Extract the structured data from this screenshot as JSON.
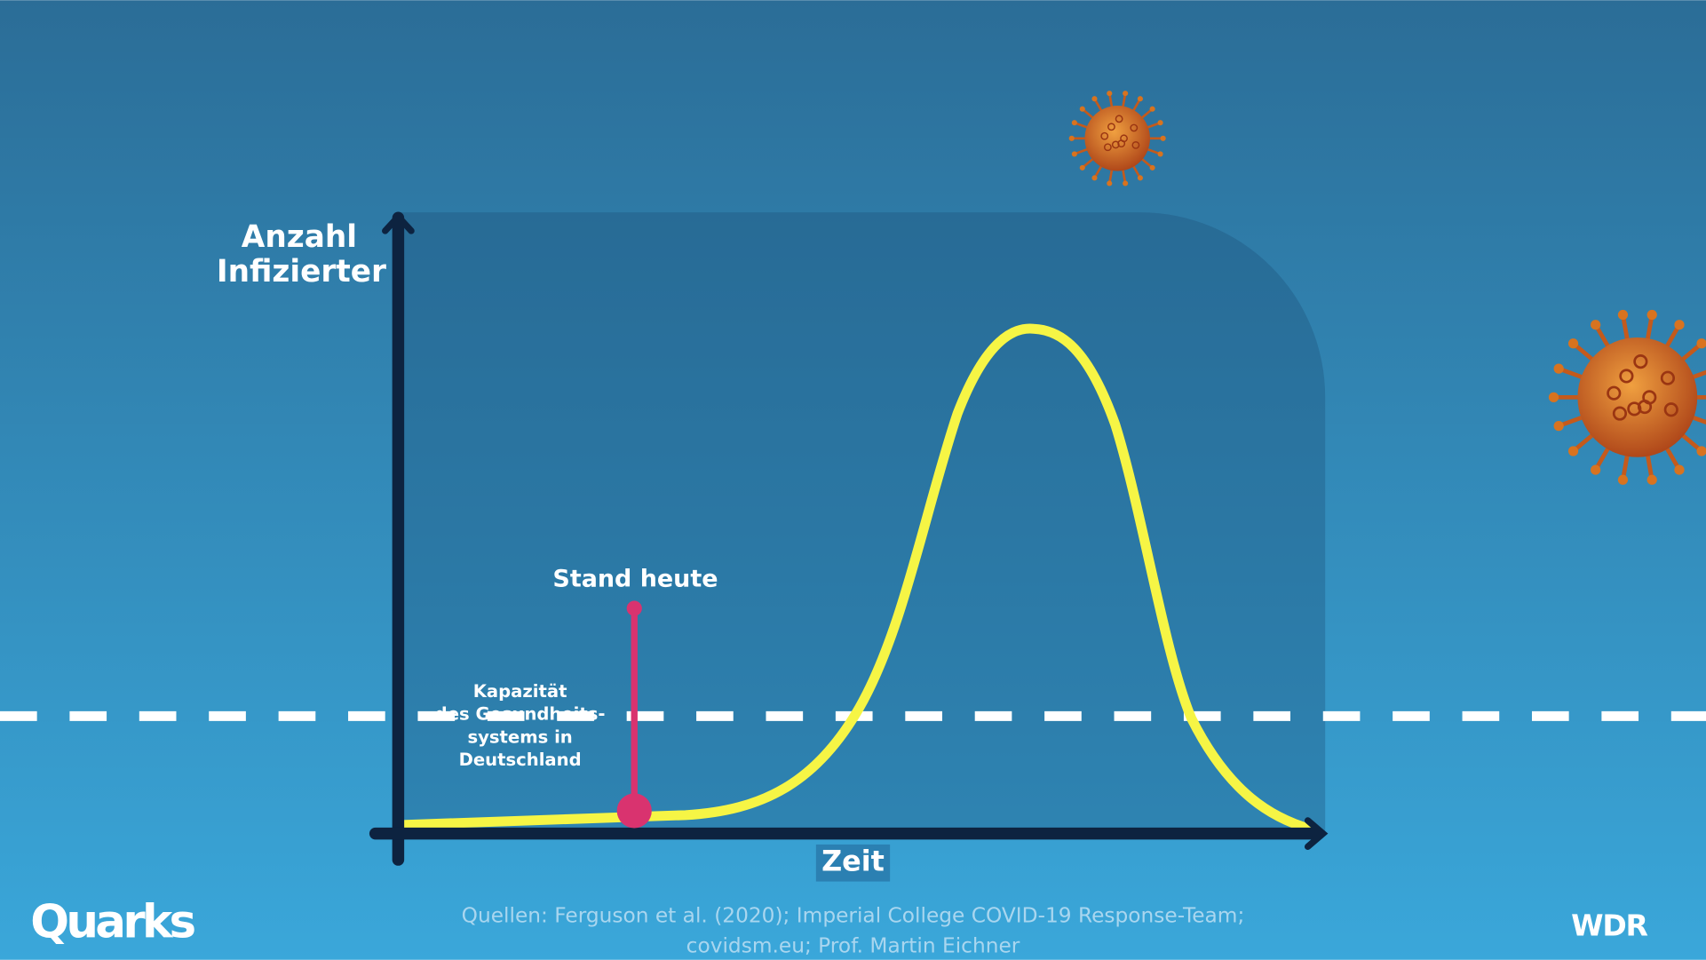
{
  "y_axis_label": [
    "Anzahl",
    "Infizierter"
  ],
  "x_axis_label": "Zeit",
  "marker_label": "Stand heute",
  "capacity_label": [
    "Kapazität",
    "des Gesundheits-",
    "systems in",
    "Deutschland"
  ],
  "source": [
    "Quellen: Ferguson et al. (2020); Imperial College COVID-19 Response-Team;",
    "covidsm.eu; Prof. Martin Eichner"
  ],
  "logo_left": "Quarks",
  "logo_right": "WDR"
}
